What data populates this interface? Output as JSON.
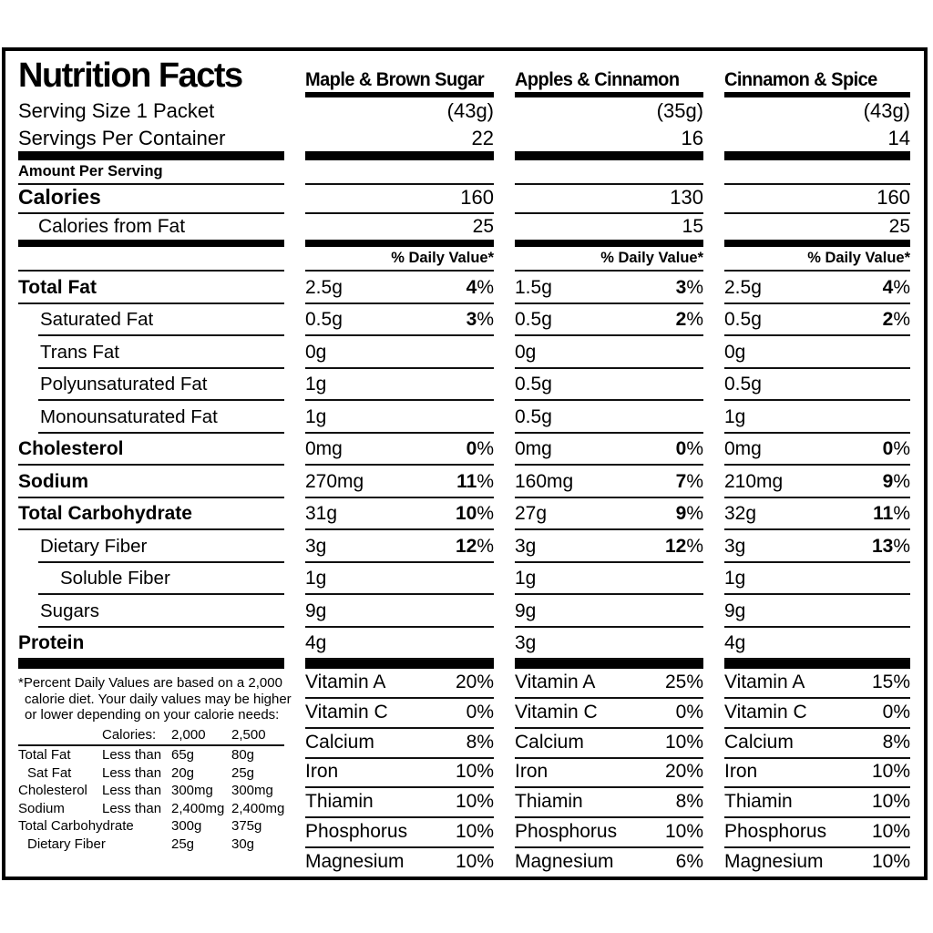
{
  "title": "Nutrition Facts",
  "glyphs": {
    "percent": "%"
  },
  "serving": {
    "size": "Serving Size 1 Packet",
    "per_container": "Servings Per Container"
  },
  "sections": {
    "amount_per_serving": "Amount Per Serving",
    "calories": "Calories",
    "calories_from_fat": "Calories from Fat",
    "daily_value": "% Daily Value*"
  },
  "nutrient_labels": [
    "Total Fat",
    "Saturated Fat",
    "Trans Fat",
    "Polyunsaturated Fat",
    "Monounsaturated Fat",
    "Cholesterol",
    "Sodium",
    "Total Carbohydrate",
    "Dietary Fiber",
    "Soluble Fiber",
    "Sugars",
    "Protein"
  ],
  "columns": [
    {
      "name": "Maple & Brown Sugar",
      "weight": "(43g)",
      "servings": "22",
      "calories": "160",
      "calories_from_fat": "25",
      "nutrients": [
        {
          "amount": "2.5g",
          "dv": "4"
        },
        {
          "amount": "0.5g",
          "dv": "3"
        },
        {
          "amount": "0g"
        },
        {
          "amount": "1g"
        },
        {
          "amount": "1g"
        },
        {
          "amount": "0mg",
          "dv": "0"
        },
        {
          "amount": "270mg",
          "dv": "11"
        },
        {
          "amount": "31g",
          "dv": "10"
        },
        {
          "amount": "3g",
          "dv": "12"
        },
        {
          "amount": "1g"
        },
        {
          "amount": "9g"
        },
        {
          "amount": "4g"
        }
      ],
      "vitamins": [
        {
          "name": "Vitamin A",
          "value": "20%"
        },
        {
          "name": "Vitamin C",
          "value": "0%"
        },
        {
          "name": "Calcium",
          "value": "8%"
        },
        {
          "name": "Iron",
          "value": "10%"
        },
        {
          "name": "Thiamin",
          "value": "10%"
        },
        {
          "name": "Phosphorus",
          "value": "10%"
        },
        {
          "name": "Magnesium",
          "value": "10%"
        }
      ]
    },
    {
      "name": "Apples & Cinnamon",
      "weight": "(35g)",
      "servings": "16",
      "calories": "130",
      "calories_from_fat": "15",
      "nutrients": [
        {
          "amount": "1.5g",
          "dv": "3"
        },
        {
          "amount": "0.5g",
          "dv": "2"
        },
        {
          "amount": "0g"
        },
        {
          "amount": "0.5g"
        },
        {
          "amount": "0.5g"
        },
        {
          "amount": "0mg",
          "dv": "0"
        },
        {
          "amount": "160mg",
          "dv": "7"
        },
        {
          "amount": "27g",
          "dv": "9"
        },
        {
          "amount": "3g",
          "dv": "12"
        },
        {
          "amount": "1g"
        },
        {
          "amount": "9g"
        },
        {
          "amount": "3g"
        }
      ],
      "vitamins": [
        {
          "name": "Vitamin A",
          "value": "25%"
        },
        {
          "name": "Vitamin C",
          "value": "0%"
        },
        {
          "name": "Calcium",
          "value": "10%"
        },
        {
          "name": "Iron",
          "value": "20%"
        },
        {
          "name": "Thiamin",
          "value": "8%"
        },
        {
          "name": "Phosphorus",
          "value": "10%"
        },
        {
          "name": "Magnesium",
          "value": "6%"
        }
      ]
    },
    {
      "name": "Cinnamon & Spice",
      "weight": "(43g)",
      "servings": "14",
      "calories": "160",
      "calories_from_fat": "25",
      "nutrients": [
        {
          "amount": "2.5g",
          "dv": "4"
        },
        {
          "amount": "0.5g",
          "dv": "2"
        },
        {
          "amount": "0g"
        },
        {
          "amount": "0.5g"
        },
        {
          "amount": "1g"
        },
        {
          "amount": "0mg",
          "dv": "0"
        },
        {
          "amount": "210mg",
          "dv": "9"
        },
        {
          "amount": "32g",
          "dv": "11"
        },
        {
          "amount": "3g",
          "dv": "13"
        },
        {
          "amount": "1g"
        },
        {
          "amount": "9g"
        },
        {
          "amount": "4g"
        }
      ],
      "vitamins": [
        {
          "name": "Vitamin A",
          "value": "15%"
        },
        {
          "name": "Vitamin C",
          "value": "0%"
        },
        {
          "name": "Calcium",
          "value": "8%"
        },
        {
          "name": "Iron",
          "value": "10%"
        },
        {
          "name": "Thiamin",
          "value": "10%"
        },
        {
          "name": "Phosphorus",
          "value": "10%"
        },
        {
          "name": "Magnesium",
          "value": "10%"
        }
      ]
    }
  ],
  "footnote": {
    "line1": "*Percent Daily Values are based on a 2,000",
    "line2": "calorie diet. Your daily values may be higher",
    "line3": "or lower depending on your calorie needs:",
    "header": {
      "calories": "Calories:",
      "v2000": "2,000",
      "v2500": "2,500"
    },
    "rows": [
      {
        "name": "Total Fat",
        "qual": "Less than",
        "v2000": "65g",
        "v2500": "80g"
      },
      {
        "name": "Sat Fat",
        "qual": "Less than",
        "v2000": "20g",
        "v2500": "25g"
      },
      {
        "name": "Cholesterol",
        "qual": "Less than",
        "v2000": "300mg",
        "v2500": "300mg"
      },
      {
        "name": "Sodium",
        "qual": "Less than",
        "v2000": "2,400mg",
        "v2500": "2,400mg"
      },
      {
        "name": "Total Carbohydrate",
        "v2000": "300g",
        "v2500": "375g"
      },
      {
        "name": "Dietary Fiber",
        "v2000": "25g",
        "v2500": "30g"
      }
    ]
  }
}
